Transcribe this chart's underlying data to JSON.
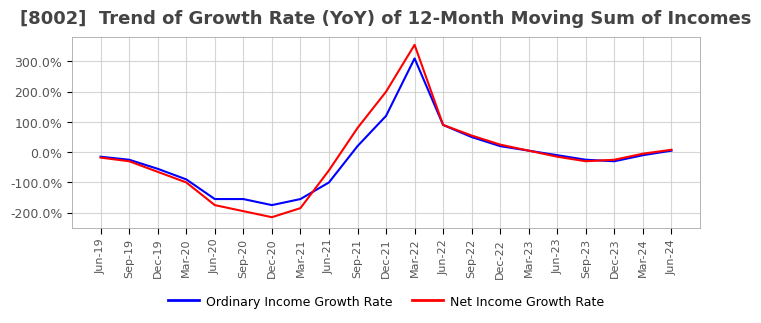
{
  "title": "[8002]  Trend of Growth Rate (YoY) of 12-Month Moving Sum of Incomes",
  "title_fontsize": 13,
  "legend_labels": [
    "Ordinary Income Growth Rate",
    "Net Income Growth Rate"
  ],
  "legend_colors": [
    "#0000ff",
    "#ff0000"
  ],
  "ylim": [
    -250,
    380
  ],
  "yticks": [
    -200,
    -100,
    0,
    100,
    200,
    300
  ],
  "background_color": "#ffffff",
  "grid_color": "#cccccc",
  "dates": [
    "Jun-19",
    "Sep-19",
    "Dec-19",
    "Mar-20",
    "Jun-20",
    "Sep-20",
    "Dec-20",
    "Mar-21",
    "Jun-21",
    "Sep-21",
    "Dec-21",
    "Mar-22",
    "Jun-22",
    "Sep-22",
    "Dec-22",
    "Mar-23",
    "Jun-23",
    "Sep-23",
    "Dec-23",
    "Mar-24",
    "Jun-24"
  ],
  "ordinary_income": [
    -15,
    -25,
    -55,
    -90,
    -155,
    -155,
    -175,
    -155,
    -100,
    20,
    120,
    310,
    90,
    50,
    20,
    5,
    -10,
    -25,
    -30,
    -10,
    5
  ],
  "net_income": [
    -18,
    -30,
    -65,
    -100,
    -175,
    -195,
    -215,
    -185,
    -60,
    80,
    200,
    355,
    90,
    55,
    25,
    5,
    -15,
    -30,
    -25,
    -5,
    8
  ]
}
